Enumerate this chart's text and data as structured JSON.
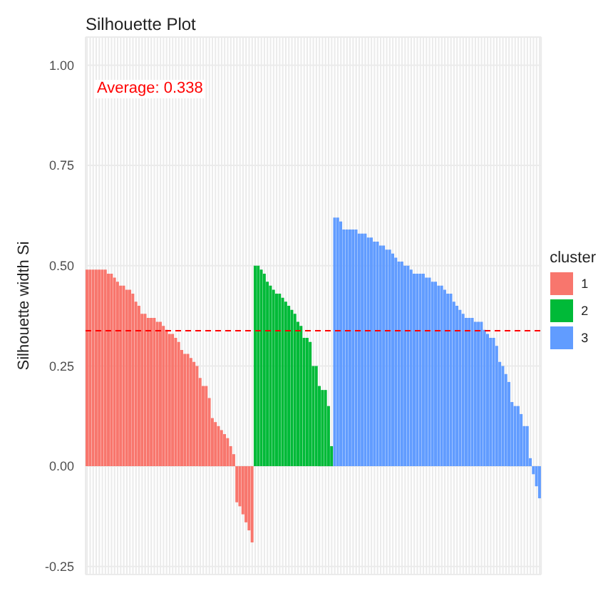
{
  "chart_data": {
    "type": "bar",
    "title": "Silhouette Plot",
    "ylabel": "Silhouette width Si",
    "legend_title": "cluster",
    "categories": [
      null,
      null,
      null,
      null,
      null,
      null,
      null,
      null,
      null,
      null,
      null,
      null,
      null,
      null,
      null,
      null,
      null,
      null,
      null,
      null,
      null,
      null,
      null,
      null,
      null,
      null,
      null,
      null,
      null,
      null,
      null,
      null,
      null,
      null,
      null,
      null,
      null,
      null,
      null,
      null,
      null,
      null,
      null,
      null,
      null,
      null,
      null,
      null,
      null,
      null,
      null,
      null,
      null,
      null,
      null,
      null,
      null,
      null,
      null,
      null,
      null,
      null,
      null,
      null,
      null,
      null,
      null,
      null,
      null,
      null,
      null,
      null,
      null,
      null,
      null,
      null,
      null,
      null,
      null,
      null,
      null,
      null,
      null,
      null,
      null,
      null,
      null,
      null,
      null,
      null,
      null,
      null,
      null,
      null,
      null,
      null,
      null,
      null,
      null,
      null,
      null,
      null,
      null,
      null,
      null,
      null,
      null,
      null,
      null,
      null,
      null,
      null,
      null,
      null,
      null,
      null,
      null,
      null,
      null,
      null,
      null,
      null,
      null,
      null,
      null,
      null,
      null,
      null,
      null,
      null,
      null,
      null,
      null,
      null,
      null,
      null,
      null,
      null,
      null,
      null,
      null,
      null,
      null,
      null,
      null,
      null,
      null,
      null,
      null
    ],
    "series": [
      {
        "name": "1",
        "color": "#f8766d",
        "values": [
          0.49,
          0.49,
          0.49,
          0.49,
          0.49,
          0.49,
          0.49,
          0.48,
          0.48,
          0.47,
          0.46,
          0.45,
          0.45,
          0.44,
          0.44,
          0.43,
          0.41,
          0.4,
          0.38,
          0.38,
          0.37,
          0.37,
          0.37,
          0.36,
          0.36,
          0.35,
          0.34,
          0.33,
          0.33,
          0.32,
          0.31,
          0.29,
          0.28,
          0.28,
          0.27,
          0.26,
          0.25,
          0.22,
          0.2,
          0.2,
          0.17,
          0.12,
          0.11,
          0.1,
          0.09,
          0.08,
          0.07,
          0.05,
          0.03,
          -0.09,
          -0.1,
          -0.12,
          -0.14,
          -0.16,
          -0.19,
          null,
          null,
          null,
          null,
          null,
          null,
          null,
          null,
          null,
          null,
          null,
          null,
          null,
          null,
          null,
          null,
          null,
          null,
          null,
          null,
          null,
          null,
          null,
          null,
          null,
          null,
          null,
          null,
          null,
          null,
          null,
          null,
          null,
          null,
          null,
          null,
          null,
          null,
          null,
          null,
          null,
          null,
          null,
          null,
          null,
          null,
          null,
          null,
          null,
          null,
          null,
          null,
          null,
          null,
          null,
          null,
          null,
          null,
          null,
          null,
          null,
          null,
          null,
          null,
          null,
          null,
          null,
          null,
          null,
          null,
          null,
          null,
          null,
          null,
          null,
          null,
          null,
          null,
          null,
          null,
          null,
          null,
          null,
          null,
          null,
          null,
          null,
          null,
          null,
          null,
          null,
          null,
          null,
          null
        ]
      },
      {
        "name": "2",
        "color": "#00ba38",
        "values": [
          null,
          null,
          null,
          null,
          null,
          null,
          null,
          null,
          null,
          null,
          null,
          null,
          null,
          null,
          null,
          null,
          null,
          null,
          null,
          null,
          null,
          null,
          null,
          null,
          null,
          null,
          null,
          null,
          null,
          null,
          null,
          null,
          null,
          null,
          null,
          null,
          null,
          null,
          null,
          null,
          null,
          null,
          null,
          null,
          null,
          null,
          null,
          null,
          null,
          null,
          null,
          null,
          null,
          null,
          null,
          0.5,
          0.5,
          0.49,
          0.48,
          0.46,
          0.45,
          0.44,
          0.43,
          0.43,
          0.42,
          0.41,
          0.4,
          0.39,
          0.38,
          0.36,
          0.35,
          0.32,
          0.32,
          0.31,
          0.25,
          0.25,
          0.2,
          0.19,
          0.19,
          0.15,
          0.05,
          null,
          null,
          null,
          null,
          null,
          null,
          null,
          null,
          null,
          null,
          null,
          null,
          null,
          null,
          null,
          null,
          null,
          null,
          null,
          null,
          null,
          null,
          null,
          null,
          null,
          null,
          null,
          null,
          null,
          null,
          null,
          null,
          null,
          null,
          null,
          null,
          null,
          null,
          null,
          null,
          null,
          null,
          null,
          null,
          null,
          null,
          null,
          null,
          null,
          null,
          null,
          null,
          null,
          null,
          null,
          null,
          null,
          null,
          null,
          null,
          null,
          null,
          null,
          null,
          null,
          null,
          null,
          null
        ]
      },
      {
        "name": "3",
        "color": "#619cff",
        "values": [
          null,
          null,
          null,
          null,
          null,
          null,
          null,
          null,
          null,
          null,
          null,
          null,
          null,
          null,
          null,
          null,
          null,
          null,
          null,
          null,
          null,
          null,
          null,
          null,
          null,
          null,
          null,
          null,
          null,
          null,
          null,
          null,
          null,
          null,
          null,
          null,
          null,
          null,
          null,
          null,
          null,
          null,
          null,
          null,
          null,
          null,
          null,
          null,
          null,
          null,
          null,
          null,
          null,
          null,
          null,
          null,
          null,
          null,
          null,
          null,
          null,
          null,
          null,
          null,
          null,
          null,
          null,
          null,
          null,
          null,
          null,
          null,
          null,
          null,
          null,
          null,
          null,
          null,
          null,
          null,
          null,
          0.62,
          0.62,
          0.61,
          0.59,
          0.59,
          0.59,
          0.59,
          0.59,
          0.58,
          0.58,
          0.58,
          0.57,
          0.57,
          0.56,
          0.56,
          0.55,
          0.55,
          0.54,
          0.54,
          0.53,
          0.52,
          0.51,
          0.51,
          0.5,
          0.5,
          0.49,
          0.48,
          0.48,
          0.48,
          0.48,
          0.47,
          0.47,
          0.46,
          0.46,
          0.45,
          0.45,
          0.44,
          0.43,
          0.43,
          0.41,
          0.4,
          0.39,
          0.38,
          0.37,
          0.37,
          0.37,
          0.36,
          0.36,
          0.36,
          0.34,
          0.33,
          0.32,
          0.32,
          0.3,
          0.26,
          0.25,
          0.23,
          0.21,
          0.16,
          0.15,
          0.15,
          0.13,
          0.1,
          0.1,
          0.02,
          -0.02,
          -0.05,
          -0.08
        ]
      }
    ],
    "stacked": true,
    "ylim": [
      -0.27,
      1.07
    ],
    "yticks": [
      {
        "value": -0.25,
        "label": "-0.25"
      },
      {
        "value": 0,
        "label": "0.00"
      },
      {
        "value": 0.25,
        "label": "0.25"
      },
      {
        "value": 0.5,
        "label": "0.50"
      },
      {
        "value": 0.75,
        "label": "0.75"
      },
      {
        "value": 1,
        "label": "1.00"
      }
    ],
    "ref_lines": [
      {
        "axis": "y",
        "value": 0.338,
        "color": "#ff0000",
        "line_style": "dashed"
      }
    ],
    "annotations": [
      "Average: 0.338"
    ],
    "grid": true,
    "legend": "right"
  }
}
